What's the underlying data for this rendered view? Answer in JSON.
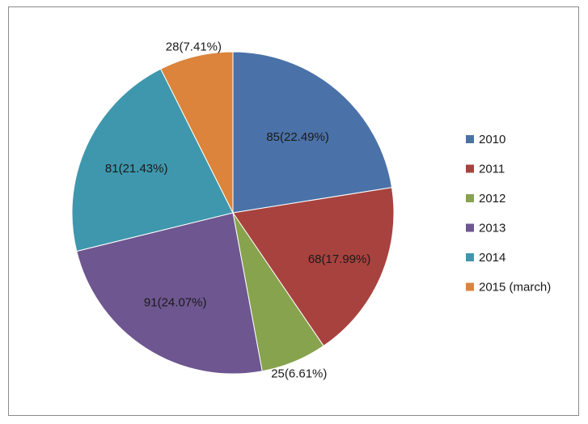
{
  "chart_data": {
    "type": "pie",
    "title": "",
    "legend_position": "right",
    "slices": [
      {
        "label": "2010",
        "value": 85,
        "percent": 22.49,
        "display": "85(22.49%)",
        "color": "#4a72a8"
      },
      {
        "label": "2011",
        "value": 68,
        "percent": 17.99,
        "display": "68(17.99%)",
        "color": "#a8423e"
      },
      {
        "label": "2012",
        "value": 25,
        "percent": 6.61,
        "display": "25(6.61%)",
        "color": "#87a34d"
      },
      {
        "label": "2013",
        "value": 91,
        "percent": 24.07,
        "display": "91(24.07%)",
        "color": "#6e5690"
      },
      {
        "label": "2014",
        "value": 81,
        "percent": 21.43,
        "display": "81(21.43%)",
        "color": "#3f97ad"
      },
      {
        "label": "2015 (march)",
        "value": 28,
        "percent": 7.41,
        "display": "28(7.41%)",
        "color": "#dc843b"
      }
    ]
  }
}
